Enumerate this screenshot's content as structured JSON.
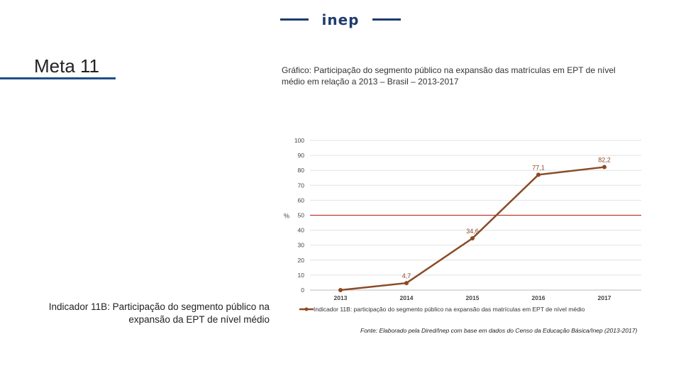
{
  "header": {
    "logo_text": "inep",
    "meta_title": "Meta 11"
  },
  "chart_heading": "Gráfico: Participação do segmento público na expansão das matrículas em EPT de nível médio em relação a 2013 – Brasil – 2013-2017",
  "indicator": {
    "label": "Indicador 11B:",
    "text": " Participação do segmento público na expansão da EPT de nível médio"
  },
  "source": "Fonte: Elaborado pela Dired/Inep com base em dados do Censo da Educação Básica/Inep (2013-2017)",
  "colors": {
    "series": "#8b4a26",
    "target_line": "#c0392b",
    "grid": "#e2e2e2",
    "brand": "#1f3b6e"
  },
  "chart_data": {
    "type": "line",
    "title": "",
    "xlabel": "",
    "ylabel": "%",
    "ylim": [
      0,
      100
    ],
    "yticks": [
      "0",
      "10",
      "20",
      "30",
      "40",
      "50",
      "60",
      "70",
      "80",
      "90",
      "100"
    ],
    "categories": [
      "2013",
      "2014",
      "2015",
      "2016",
      "2017"
    ],
    "series": [
      {
        "name": "Indicador 11B: participação do segmento público na expansão das matrículas em EPT de nível médio",
        "values": [
          0,
          4.7,
          34.6,
          77.1,
          82.2
        ],
        "labels": [
          "",
          "4,7",
          "34,6",
          "77,1",
          "82,2"
        ]
      }
    ],
    "reference_line": 50,
    "legend_position": "bottom"
  }
}
